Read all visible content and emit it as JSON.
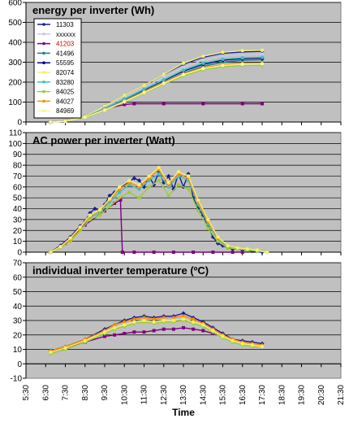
{
  "chart_data": [
    {
      "type": "line",
      "title": "energy per inverter (Wh)",
      "ylim": [
        0,
        600
      ],
      "yticks": [
        0,
        100,
        200,
        300,
        400,
        500,
        600
      ],
      "legend_position": "top-left",
      "series": [
        {
          "name": "11303",
          "color": "#1a1a9a",
          "marker": "diamond",
          "x": [
            6.75,
            7.5,
            8.5,
            9.5,
            10.5,
            11.5,
            12.5,
            13.5,
            14.5,
            15.5,
            16.5,
            17.5
          ],
          "y": [
            0,
            5,
            30,
            80,
            135,
            185,
            240,
            290,
            325,
            345,
            352,
            355
          ]
        },
        {
          "name": "xxxxxx",
          "color": "#c8c8e8",
          "marker": "square",
          "x": [
            6.75,
            7.5,
            8.5,
            9.5,
            10.5,
            11.5,
            12.5,
            13.5,
            14.5,
            15.5,
            16.5,
            17.5
          ],
          "y": [
            0,
            5,
            28,
            75,
            125,
            175,
            225,
            275,
            310,
            330,
            338,
            340
          ]
        },
        {
          "name": "41203",
          "color": "#800080",
          "label_color": "#c00000",
          "marker": "square",
          "x": [
            6.75,
            7.5,
            8.5,
            9.5,
            10.5,
            11.0,
            12.5,
            14.5,
            16.5,
            17.5
          ],
          "y": [
            0,
            5,
            28,
            65,
            88,
            92,
            92,
            92,
            92,
            92
          ]
        },
        {
          "name": "41496",
          "color": "#208080",
          "marker": "plus",
          "x": [
            6.75,
            7.5,
            8.5,
            9.5,
            10.5,
            11.5,
            12.5,
            13.5,
            14.5,
            15.5,
            16.5,
            17.5
          ],
          "y": [
            0,
            4,
            25,
            65,
            110,
            155,
            200,
            245,
            280,
            300,
            310,
            312
          ]
        },
        {
          "name": "55595",
          "color": "#000080",
          "marker": "dash",
          "x": [
            6.75,
            7.5,
            8.5,
            9.5,
            10.5,
            11.5,
            12.5,
            13.5,
            14.5,
            15.5,
            16.5,
            17.5
          ],
          "y": [
            0,
            4,
            25,
            68,
            115,
            162,
            208,
            255,
            290,
            310,
            318,
            320
          ]
        },
        {
          "name": "82074",
          "color": "#f0f070",
          "marker": "circle",
          "x": [
            6.75,
            7.5,
            8.5,
            9.5,
            10.5,
            11.5,
            12.5,
            13.5,
            14.5,
            15.5,
            16.5,
            17.5
          ],
          "y": [
            0,
            5,
            30,
            80,
            135,
            185,
            240,
            295,
            330,
            350,
            358,
            360
          ]
        },
        {
          "name": "83280",
          "color": "#40c0c0",
          "marker": "circle",
          "x": [
            6.75,
            7.5,
            8.5,
            9.5,
            10.5,
            11.5,
            12.5,
            13.5,
            14.5,
            15.5,
            16.5,
            17.5
          ],
          "y": [
            0,
            4,
            26,
            68,
            115,
            165,
            212,
            260,
            295,
            315,
            322,
            325
          ]
        },
        {
          "name": "84025",
          "color": "#9acd32",
          "marker": "diamond",
          "x": [
            6.75,
            7.5,
            8.5,
            9.5,
            10.5,
            11.5,
            12.5,
            13.5,
            14.5,
            15.5,
            16.5,
            17.5
          ],
          "y": [
            0,
            3,
            22,
            58,
            100,
            145,
            190,
            232,
            262,
            278,
            284,
            285
          ]
        },
        {
          "name": "84027",
          "color": "#ff8c00",
          "marker": "diamond",
          "x": [
            6.75,
            7.5,
            8.5,
            9.5,
            10.5,
            11.5,
            12.5,
            13.5,
            14.5,
            15.5,
            16.5,
            17.5
          ],
          "y": [
            0,
            4,
            25,
            62,
            105,
            152,
            198,
            242,
            272,
            288,
            294,
            295
          ]
        },
        {
          "name": "84969",
          "color": "#f5f5a0",
          "marker": "circle",
          "x": [
            6.75,
            7.5,
            8.5,
            9.5,
            10.5,
            11.5,
            12.5,
            13.5,
            14.5,
            15.5,
            16.5,
            17.5
          ],
          "y": [
            0,
            4,
            24,
            60,
            102,
            148,
            194,
            238,
            268,
            284,
            290,
            292
          ]
        }
      ]
    },
    {
      "type": "line",
      "title": "AC power per inverter (Watt)",
      "ylim": [
        0,
        110
      ],
      "yticks": [
        0,
        10,
        20,
        30,
        40,
        50,
        60,
        70,
        80,
        90,
        100,
        110
      ],
      "series": [
        {
          "name": "11303",
          "color": "#1a1a9a",
          "marker": "diamond",
          "x": [
            6.75,
            7.25,
            7.75,
            8.25,
            8.5,
            8.75,
            9.0,
            9.25,
            9.5,
            9.75,
            10.0,
            10.25,
            10.5,
            10.75,
            11.0,
            11.25,
            11.5,
            11.75,
            12.0,
            12.25,
            12.5,
            12.75,
            13.0,
            13.25,
            13.5,
            13.75,
            14.0,
            14.25,
            14.5,
            14.75,
            15.0,
            15.25,
            15.5,
            15.75,
            16.0,
            16.25,
            16.5,
            16.75,
            17.0,
            17.25,
            17.5
          ],
          "y": [
            0,
            6,
            14,
            24,
            28,
            36,
            40,
            38,
            44,
            52,
            55,
            58,
            62,
            65,
            68,
            66,
            60,
            70,
            62,
            74,
            64,
            70,
            58,
            72,
            60,
            72,
            50,
            40,
            34,
            24,
            14,
            8,
            6,
            4,
            3,
            3,
            2,
            2,
            1,
            1,
            0
          ]
        },
        {
          "name": "41203",
          "color": "#800080",
          "marker": "square",
          "x": [
            6.75,
            7.5,
            8.5,
            9.5,
            10.0,
            10.3,
            10.4,
            11.0,
            12.0,
            13.0,
            14.0,
            15.0,
            16.0,
            16.5
          ],
          "y": [
            0,
            8,
            25,
            38,
            45,
            48,
            0,
            0,
            0,
            0,
            0,
            0,
            0,
            0
          ]
        },
        {
          "name": "83280",
          "color": "#40c0c0",
          "marker": "circle",
          "x": [
            6.75,
            7.25,
            7.75,
            8.25,
            8.75,
            9.25,
            9.75,
            10.25,
            10.75,
            11.25,
            11.75,
            12.25,
            12.75,
            13.25,
            13.75,
            14.25,
            14.75,
            15.25,
            15.75,
            16.25,
            16.75,
            17.25,
            17.75
          ],
          "y": [
            0,
            5,
            12,
            22,
            32,
            36,
            46,
            55,
            62,
            58,
            66,
            72,
            60,
            70,
            66,
            44,
            26,
            12,
            5,
            3,
            2,
            1,
            0
          ]
        },
        {
          "name": "84025",
          "color": "#9acd32",
          "marker": "diamond",
          "x": [
            6.75,
            7.25,
            7.75,
            8.25,
            8.75,
            9.25,
            9.75,
            10.25,
            10.75,
            11.25,
            11.75,
            12.25,
            12.75,
            13.25,
            13.75,
            14.25,
            14.75,
            15.25,
            15.75,
            16.25,
            16.75,
            17.25,
            17.75
          ],
          "y": [
            0,
            4,
            10,
            20,
            30,
            34,
            42,
            50,
            55,
            50,
            60,
            66,
            52,
            62,
            58,
            38,
            22,
            10,
            4,
            3,
            2,
            1,
            0
          ]
        },
        {
          "name": "84027",
          "color": "#ff8c00",
          "marker": "diamond",
          "x": [
            6.75,
            7.25,
            7.75,
            8.25,
            8.75,
            9.25,
            9.75,
            10.25,
            10.75,
            11.25,
            11.75,
            12.25,
            12.75,
            13.25,
            13.75,
            14.25,
            14.75,
            15.25,
            15.75,
            16.25,
            16.75,
            17.25,
            17.75
          ],
          "y": [
            0,
            5,
            12,
            22,
            33,
            38,
            48,
            58,
            64,
            60,
            68,
            76,
            62,
            72,
            68,
            46,
            28,
            13,
            6,
            4,
            3,
            2,
            0
          ]
        },
        {
          "name": "82074",
          "color": "#f0f070",
          "marker": "circle",
          "x": [
            6.75,
            7.25,
            7.75,
            8.25,
            8.75,
            9.25,
            9.75,
            10.25,
            10.75,
            11.25,
            11.75,
            12.25,
            12.75,
            13.25,
            13.75,
            14.25,
            14.75,
            15.25,
            15.75,
            16.25,
            16.75,
            17.25,
            17.75
          ],
          "y": [
            0,
            5,
            13,
            23,
            34,
            39,
            49,
            60,
            66,
            62,
            70,
            78,
            64,
            74,
            70,
            48,
            30,
            14,
            6,
            4,
            3,
            2,
            0
          ]
        }
      ]
    },
    {
      "type": "line",
      "title": "individual inverter temperature (ºC)",
      "ylim": [
        -10,
        70
      ],
      "yticks": [
        -10,
        0,
        10,
        20,
        30,
        40,
        50,
        60,
        70
      ],
      "xlabel": "Time",
      "xticks": [
        "5:30",
        "6:30",
        "7:30",
        "8:30",
        "9:30",
        "10:30",
        "11:30",
        "12:30",
        "13:30",
        "14:30",
        "15:30",
        "16:30",
        "17:30",
        "18:30",
        "19:30",
        "20:30",
        "21:30"
      ],
      "xlim": [
        5.5,
        21.5
      ],
      "series": [
        {
          "name": "11303",
          "color": "#1a1a9a",
          "marker": "diamond",
          "x": [
            6.75,
            7.5,
            8.5,
            9.5,
            10.0,
            10.5,
            11.0,
            11.5,
            12.0,
            12.5,
            13.0,
            13.5,
            14.0,
            14.5,
            15.0,
            15.5,
            16.0,
            16.5,
            17.0,
            17.5
          ],
          "y": [
            9,
            12,
            17,
            24,
            27,
            30,
            32,
            33,
            32,
            33,
            33,
            35,
            32,
            29,
            25,
            21,
            17,
            16,
            15,
            14
          ]
        },
        {
          "name": "41203",
          "color": "#800080",
          "marker": "square",
          "x": [
            6.75,
            7.5,
            8.5,
            9.5,
            10.0,
            10.5,
            11.0,
            11.5,
            12.0,
            12.5,
            13.0,
            13.5,
            14.0,
            14.5,
            15.0
          ],
          "y": [
            8,
            11,
            15,
            19,
            20,
            21,
            22,
            22,
            23,
            24,
            24,
            25,
            24,
            23,
            21
          ]
        },
        {
          "name": "84027",
          "color": "#ff8c00",
          "marker": "diamond",
          "x": [
            6.75,
            7.5,
            8.5,
            9.5,
            10.0,
            10.5,
            11.0,
            11.5,
            12.0,
            12.5,
            13.0,
            13.5,
            14.0,
            14.5,
            15.0,
            15.5,
            16.0,
            16.5,
            17.0,
            17.5
          ],
          "y": [
            9,
            12,
            17,
            23,
            27,
            29,
            31,
            32,
            31,
            32,
            32,
            33,
            31,
            28,
            24,
            20,
            17,
            15,
            14,
            13
          ]
        },
        {
          "name": "84025",
          "color": "#9acd32",
          "marker": "diamond",
          "x": [
            6.75,
            7.5,
            8.5,
            9.5,
            10.0,
            10.5,
            11.0,
            11.5,
            12.0,
            12.5,
            13.0,
            13.5,
            14.0,
            14.5,
            15.0,
            15.5,
            16.0,
            16.5,
            17.0,
            17.5
          ],
          "y": [
            7,
            10,
            15,
            21,
            24,
            26,
            28,
            29,
            28,
            29,
            29,
            30,
            28,
            26,
            22,
            18,
            15,
            13,
            12,
            12
          ]
        },
        {
          "name": "82074",
          "color": "#f0f070",
          "marker": "circle",
          "x": [
            6.75,
            7.5,
            8.5,
            9.5,
            10.0,
            10.5,
            11.0,
            11.5,
            12.0,
            12.5,
            13.0,
            13.5,
            14.0,
            14.5,
            15.0,
            15.5,
            16.0,
            16.5,
            17.0,
            17.5
          ],
          "y": [
            8,
            11,
            16,
            22,
            25,
            27,
            29,
            30,
            29,
            30,
            30,
            31,
            29,
            27,
            23,
            19,
            16,
            14,
            13,
            12
          ]
        }
      ]
    }
  ]
}
